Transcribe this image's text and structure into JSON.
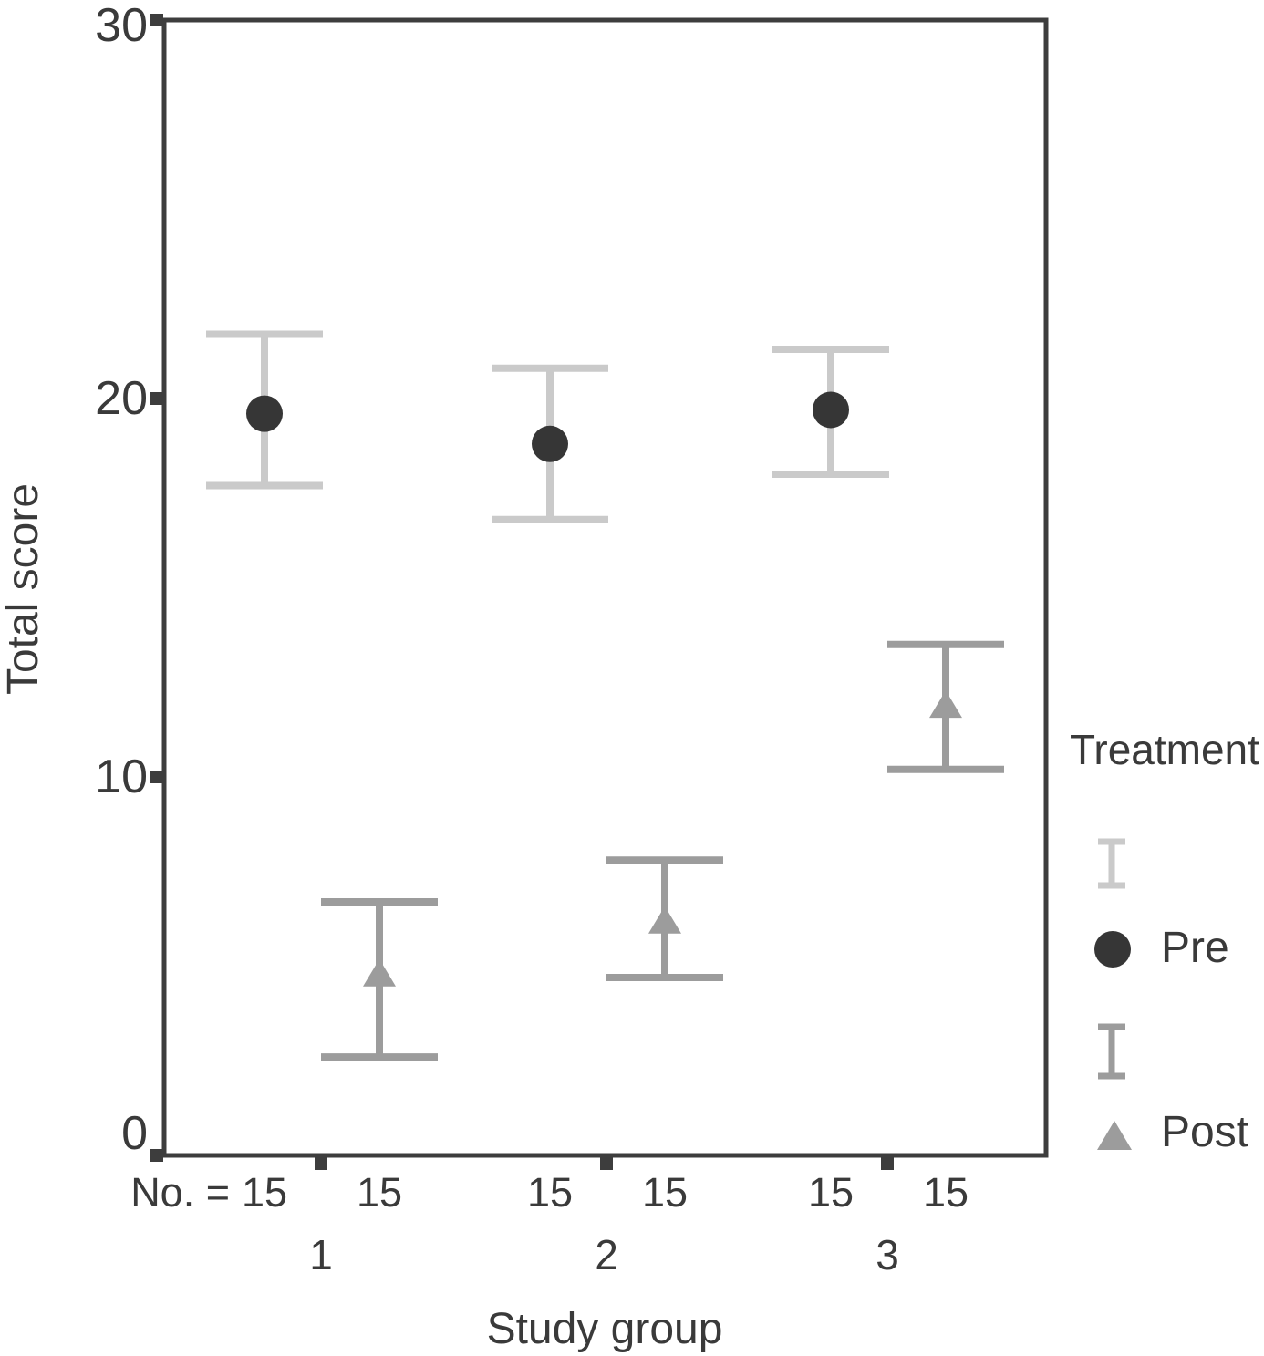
{
  "figure": {
    "y_axis": {
      "title": "Total score",
      "tick_labels": [
        "30",
        "20",
        "10",
        "0"
      ]
    },
    "x_axis": {
      "title": "Study group",
      "group_labels": [
        "1",
        "2",
        "3"
      ],
      "n_prefix": "No. =",
      "n_values": [
        "15",
        "15",
        "15",
        "15",
        "15",
        "15"
      ]
    },
    "legend": {
      "title": "Treatment",
      "entries": [
        {
          "label": "Pre",
          "marker": "circle"
        },
        {
          "label": "Post",
          "marker": "triangle"
        }
      ]
    }
  },
  "colors": {
    "background": "#ffffff",
    "axis": "#3d3d3d",
    "text": "#3a3a3a",
    "pre_errorbar": "#cacaca",
    "pre_marker": "#363636",
    "post_errorbar": "#9c9c9c",
    "post_marker": "#9c9c9c"
  },
  "chart_data": {
    "type": "errorbar",
    "title": "",
    "xlabel": "Study group",
    "ylabel": "Total score",
    "ylim": [
      0,
      30
    ],
    "y_ticks": [
      0,
      10,
      20,
      30
    ],
    "categories": [
      "1",
      "2",
      "3"
    ],
    "grid": false,
    "legend_title": "Treatment",
    "legend_position": "right",
    "series": [
      {
        "name": "Pre",
        "marker": "circle",
        "n": [
          15,
          15,
          15
        ],
        "means": [
          19.6,
          18.8,
          19.7
        ],
        "ci_low": [
          17.7,
          16.8,
          18.0
        ],
        "ci_high": [
          21.7,
          20.8,
          21.3
        ]
      },
      {
        "name": "Post",
        "marker": "triangle",
        "n": [
          15,
          15,
          15
        ],
        "means": [
          4.8,
          6.2,
          11.9
        ],
        "ci_low": [
          2.6,
          4.7,
          10.2
        ],
        "ci_high": [
          6.7,
          7.8,
          13.5
        ]
      }
    ]
  }
}
